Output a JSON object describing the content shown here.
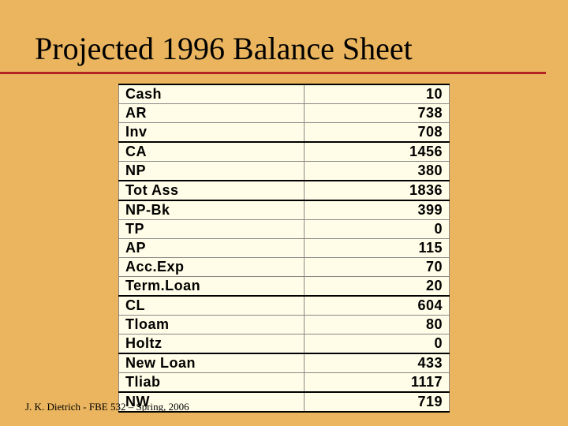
{
  "title": "Projected 1996 Balance Sheet",
  "footer": "J. K. Dietrich - FBE 532 – Spring, 2006",
  "table": {
    "background_color": "#fffde7",
    "border_color": "#888888",
    "section_border_color": "#000000",
    "font_family": "Arial",
    "font_weight": "bold",
    "font_size": 18,
    "rows": [
      {
        "label": "Cash",
        "value": "10",
        "section": true
      },
      {
        "label": "AR",
        "value": "738",
        "section": false
      },
      {
        "label": "Inv",
        "value": "708",
        "section": false
      },
      {
        "label": "CA",
        "value": "1456",
        "section": true
      },
      {
        "label": "NP",
        "value": "380",
        "section": false
      },
      {
        "label": "Tot Ass",
        "value": "1836",
        "section": true
      },
      {
        "label": "NP-Bk",
        "value": "399",
        "section": true
      },
      {
        "label": "TP",
        "value": "0",
        "section": false
      },
      {
        "label": "AP",
        "value": "115",
        "section": false
      },
      {
        "label": "Acc.Exp",
        "value": "70",
        "section": false
      },
      {
        "label": "Term.Loan",
        "value": "20",
        "section": false
      },
      {
        "label": "CL",
        "value": "604",
        "section": true
      },
      {
        "label": "Tloam",
        "value": "80",
        "section": false
      },
      {
        "label": "Holtz",
        "value": "0",
        "section": false
      },
      {
        "label": "New Loan",
        "value": "433",
        "section": true
      },
      {
        "label": "Tliab",
        "value": "1117",
        "section": false
      },
      {
        "label": "NW",
        "value": "719",
        "section": true
      }
    ]
  },
  "styling": {
    "page_background": "#eab55e",
    "title_color": "#000000",
    "title_underline_color": "#b22222",
    "title_fontsize": 40,
    "title_font_family": "Times New Roman",
    "footer_fontsize": 13
  }
}
